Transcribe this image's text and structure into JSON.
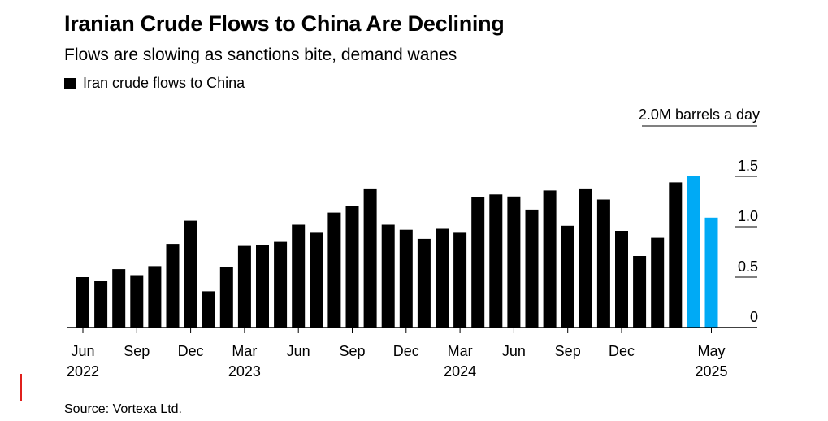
{
  "header": {
    "title": "Iranian Crude Flows to China Are Declining",
    "subtitle": "Flows are slowing as sanctions bite, demand wanes",
    "legend_label": "Iran crude flows to China"
  },
  "footer": {
    "source": "Source: Vortexa Ltd."
  },
  "colors": {
    "bar": "#000000",
    "highlight": "#00aaf5",
    "axis": "#000000"
  },
  "chart_data": {
    "type": "bar",
    "title": "Iranian Crude Flows to China Are Declining",
    "subtitle": "Flows are slowing as sanctions bite, demand wanes",
    "unit_label": "2.0M barrels a day",
    "ylim": [
      0,
      2.0
    ],
    "yticks": [
      "0",
      "0.5",
      "1.0",
      "1.5"
    ],
    "ytick_values": [
      0,
      0.5,
      1.0,
      1.5
    ],
    "series": [
      {
        "name": "Iran crude flows to China",
        "values": [
          0.5,
          0.46,
          0.58,
          0.52,
          0.61,
          0.83,
          1.06,
          0.36,
          0.6,
          0.81,
          0.82,
          0.85,
          1.02,
          0.94,
          1.14,
          1.21,
          1.38,
          1.02,
          0.97,
          0.88,
          0.98,
          0.94,
          1.29,
          1.32,
          1.3,
          1.17,
          1.36,
          1.01,
          1.38,
          1.27,
          0.96,
          0.71,
          0.89,
          1.44,
          1.5,
          1.09
        ],
        "highlight_last": 2
      }
    ],
    "categories": [
      "2022-06",
      "2022-07",
      "2022-08",
      "2022-09",
      "2022-10",
      "2022-11",
      "2022-12",
      "2023-01",
      "2023-02",
      "2023-03",
      "2023-04",
      "2023-05",
      "2023-06",
      "2023-07",
      "2023-08",
      "2023-09",
      "2023-10",
      "2023-11",
      "2023-12",
      "2024-01",
      "2024-02",
      "2024-03",
      "2024-04",
      "2024-05",
      "2024-06",
      "2024-07",
      "2024-08",
      "2024-09",
      "2024-10",
      "2024-11",
      "2024-12",
      "2025-01",
      "2025-02",
      "2025-03",
      "2025-04",
      "2025-05"
    ],
    "xticks": [
      {
        "index": 0,
        "month": "Jun",
        "year": "2022"
      },
      {
        "index": 3,
        "month": "Sep",
        "year": ""
      },
      {
        "index": 6,
        "month": "Dec",
        "year": ""
      },
      {
        "index": 9,
        "month": "Mar",
        "year": "2023"
      },
      {
        "index": 12,
        "month": "Jun",
        "year": ""
      },
      {
        "index": 15,
        "month": "Sep",
        "year": ""
      },
      {
        "index": 18,
        "month": "Dec",
        "year": ""
      },
      {
        "index": 21,
        "month": "Mar",
        "year": "2024"
      },
      {
        "index": 24,
        "month": "Jun",
        "year": ""
      },
      {
        "index": 27,
        "month": "Sep",
        "year": ""
      },
      {
        "index": 30,
        "month": "Dec",
        "year": ""
      },
      {
        "index": 35,
        "month": "May",
        "year": "2025"
      }
    ]
  }
}
